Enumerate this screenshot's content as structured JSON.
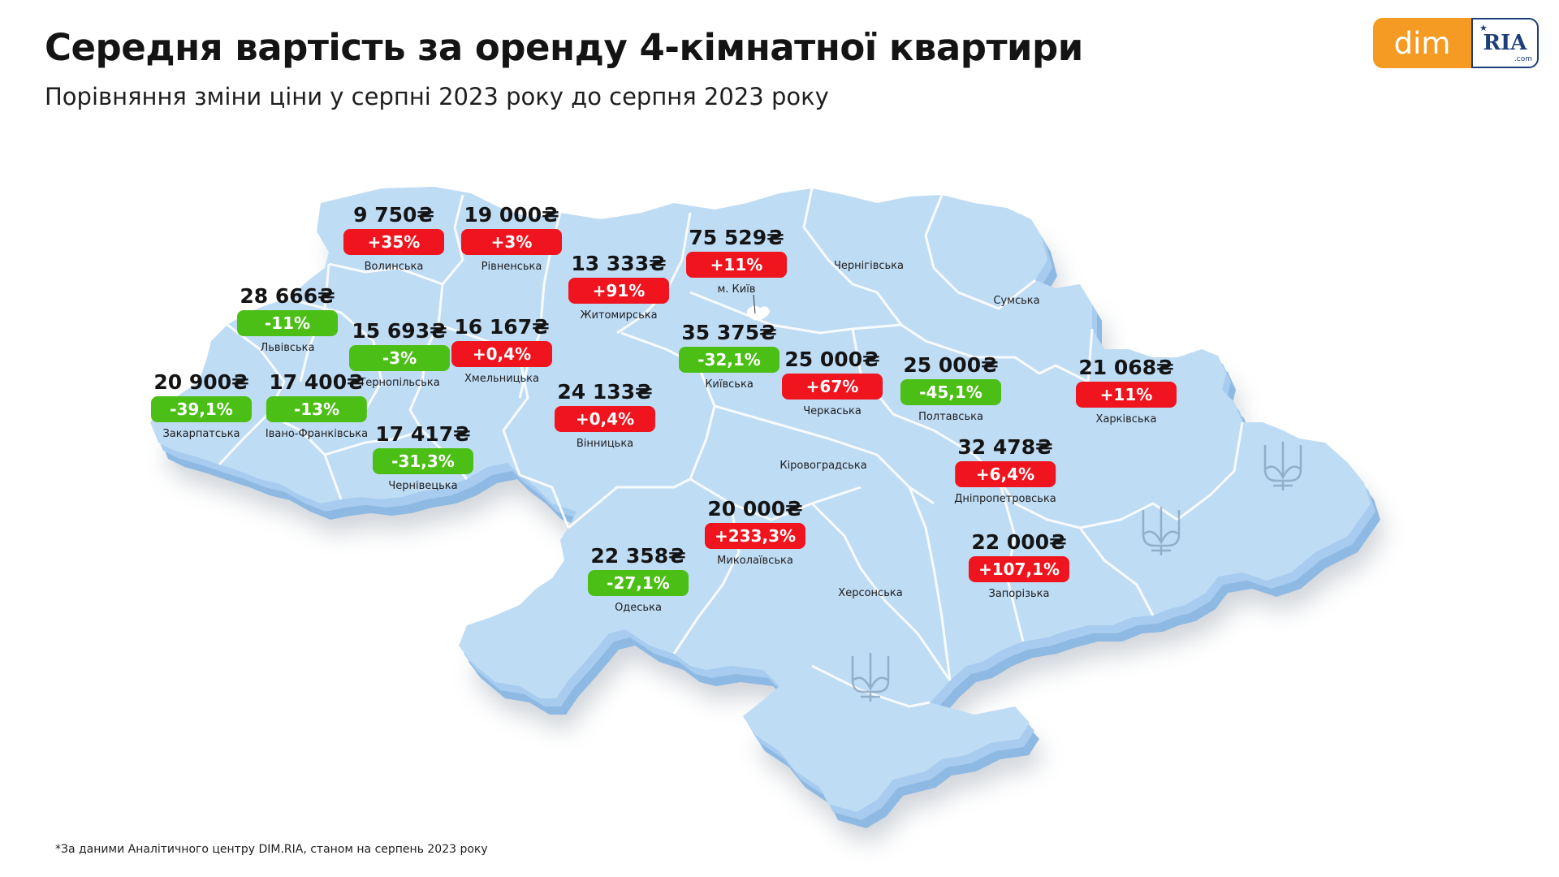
{
  "header": {
    "title": "Середня вартість за оренду 4-кімнатної квартири",
    "subtitle": "Порівняння зміни ціни у серпні 2023 року до серпня 2023 року"
  },
  "logo": {
    "left": "dim",
    "right": "RIA",
    "right_suffix": ".com"
  },
  "regions": [
    {
      "name": "Волинська",
      "price": "9 750₴",
      "change": "+35%",
      "trend": "up"
    },
    {
      "name": "Рівненська",
      "price": "19 000₴",
      "change": "+3%",
      "trend": "up"
    },
    {
      "name": "Житомирська",
      "price": "13 333₴",
      "change": "+91%",
      "trend": "up"
    },
    {
      "name": "м. Київ",
      "price": "75 529₴",
      "change": "+11%",
      "trend": "up"
    },
    {
      "name": "Львівська",
      "price": "28 666₴",
      "change": "-11%",
      "trend": "down"
    },
    {
      "name": "Тернопільська",
      "price": "15 693₴",
      "change": "-3%",
      "trend": "down"
    },
    {
      "name": "Хмельницька",
      "price": "16 167₴",
      "change": "+0,4%",
      "trend": "up"
    },
    {
      "name": "Київська",
      "price": "35 375₴",
      "change": "-32,1%",
      "trend": "down"
    },
    {
      "name": "Черкаська",
      "price": "25 000₴",
      "change": "+67%",
      "trend": "up"
    },
    {
      "name": "Полтавська",
      "price": "25 000₴",
      "change": "-45,1%",
      "trend": "down"
    },
    {
      "name": "Харківська",
      "price": "21 068₴",
      "change": "+11%",
      "trend": "up"
    },
    {
      "name": "Закарпатська",
      "price": "20 900₴",
      "change": "-39,1%",
      "trend": "down"
    },
    {
      "name": "Івано-Франківська",
      "price": "17 400₴",
      "change": "-13%",
      "trend": "down"
    },
    {
      "name": "Вінницька",
      "price": "24 133₴",
      "change": "+0,4%",
      "trend": "up"
    },
    {
      "name": "Чернівецька",
      "price": "17 417₴",
      "change": "-31,3%",
      "trend": "down"
    },
    {
      "name": "Дніпропетровська",
      "price": "32 478₴",
      "change": "+6,4%",
      "trend": "up"
    },
    {
      "name": "Миколаївська",
      "price": "20 000₴",
      "change": "+233,3%",
      "trend": "up"
    },
    {
      "name": "Одеська",
      "price": "22 358₴",
      "change": "-27,1%",
      "trend": "down"
    },
    {
      "name": "Запорізька",
      "price": "22 000₴",
      "change": "+107,1%",
      "trend": "up"
    }
  ],
  "unlabeled_regions": [
    "Чернігівська",
    "Сумська",
    "Кіровоградська",
    "Херсонська"
  ],
  "colors": {
    "up": "#f0141e",
    "down": "#4cbf16",
    "map_fill": "#bfdcf5",
    "map_edge": "#8db9e3",
    "map_border": "#ffffff"
  },
  "footnote": "*За даними Аналітичного центру DIM.RIA, станом на серпень 2023 року"
}
